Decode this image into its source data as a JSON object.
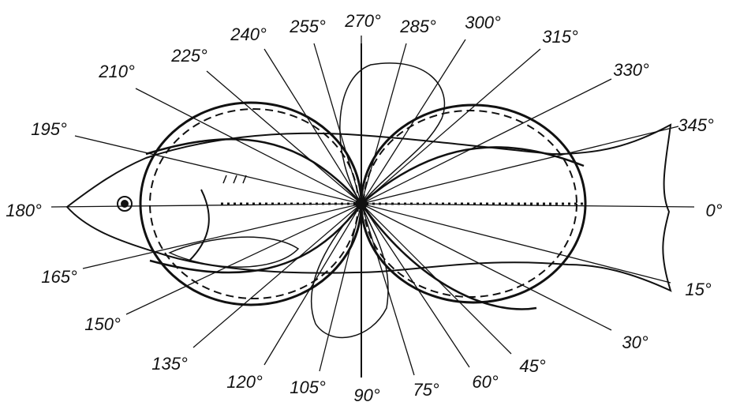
{
  "angle_labels": [
    "0°",
    "15°",
    "30°",
    "45°",
    "60°",
    "75°",
    "90°",
    "105°",
    "120°",
    "135°",
    "150°",
    "165°",
    "180°",
    "195°",
    "210°",
    "225°",
    "240°",
    "255°",
    "270°",
    "285°",
    "300°",
    "315°",
    "330°",
    "345°"
  ]
}
